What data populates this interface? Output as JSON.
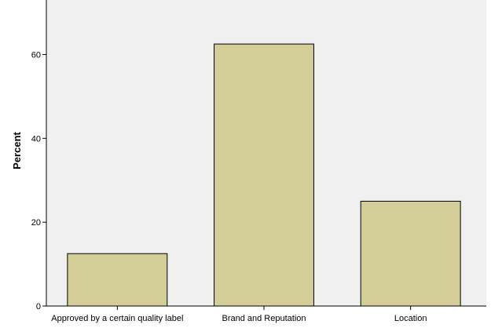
{
  "chart_data": {
    "type": "bar",
    "categories": [
      "Approved by a certain quality label",
      "Brand and Reputation",
      "Location"
    ],
    "values": [
      12.5,
      62.5,
      25.0
    ],
    "xlabel": "",
    "ylabel": "Percent",
    "ylim": [
      0,
      73
    ],
    "yticks": [
      0,
      20,
      40,
      60
    ],
    "grid": false,
    "legend": "none",
    "colors": {
      "bar_fill": "#d3ce98",
      "bar_stroke": "#000000",
      "plot_background": "#f0f0f0",
      "page_background": "#ffffff"
    }
  }
}
